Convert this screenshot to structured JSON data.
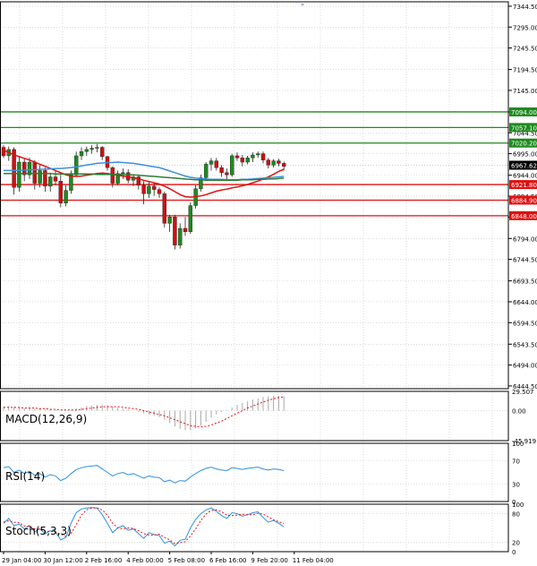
{
  "chart_data": {
    "type": "candlestick",
    "price_axis": {
      "ticks": [
        7344.5,
        7295.0,
        7245.5,
        7194.5,
        7145.0,
        7094.0,
        7044.5,
        6995.0,
        6944.0,
        6894.5,
        6844.5,
        6794.0,
        6744.5,
        6693.5,
        6644.0,
        6594.5,
        6543.5,
        6494.0,
        6444.5
      ],
      "tick_labels": [
        "7344.50",
        "7295.00",
        "7245.50",
        "7194.50",
        "7145.00",
        "7094.00",
        "7044.50",
        "6995.00",
        "6944.00",
        "6894.50",
        "6844.50",
        "6794.00",
        "6744.50",
        "6693.50",
        "6644.00",
        "6594.50",
        "6543.50",
        "6494.00",
        "6444.50"
      ],
      "range": [
        6438,
        7355
      ],
      "current_price": 6967.62,
      "current_price_label": "6967.62"
    },
    "levels": [
      {
        "value": 7094.0,
        "label": "7094.00",
        "kind": "resistance",
        "color": "#1f8a1f"
      },
      {
        "value": 7057.1,
        "label": "7057.10",
        "kind": "resistance",
        "color": "#1f8a1f"
      },
      {
        "value": 7020.2,
        "label": "7020.20",
        "kind": "resistance",
        "color": "#1f8a1f"
      },
      {
        "value": 6921.8,
        "label": "6921.80",
        "kind": "support",
        "color": "#e01010"
      },
      {
        "value": 6884.9,
        "label": "6884.90",
        "kind": "support",
        "color": "#e01010"
      },
      {
        "value": 6848.0,
        "label": "6848.00",
        "kind": "support",
        "color": "#e01010"
      }
    ],
    "time_axis": {
      "labels": [
        "29 Jan 04:00",
        "30 Jan 12:00",
        "2 Feb 16:00",
        "4 Feb 00:00",
        "5 Feb 08:00",
        "6 Feb 16:00",
        "9 Feb 20:00",
        "11 Feb 04:00"
      ],
      "label_index": [
        0,
        8,
        16,
        24,
        32,
        40,
        48,
        56
      ]
    },
    "candles": [
      [
        7010,
        7015,
        6985,
        6990
      ],
      [
        6990,
        7012,
        6978,
        7005
      ],
      [
        7005,
        7010,
        6898,
        6915
      ],
      [
        6915,
        6990,
        6905,
        6975
      ],
      [
        6975,
        6985,
        6930,
        6945
      ],
      [
        6945,
        6985,
        6935,
        6975
      ],
      [
        6975,
        6980,
        6910,
        6925
      ],
      [
        6925,
        6968,
        6915,
        6955
      ],
      [
        6955,
        6962,
        6905,
        6918
      ],
      [
        6918,
        6950,
        6905,
        6940
      ],
      [
        6940,
        6955,
        6920,
        6930
      ],
      [
        6930,
        6945,
        6868,
        6878
      ],
      [
        6878,
        6920,
        6870,
        6908
      ],
      [
        6908,
        6955,
        6900,
        6945
      ],
      [
        6945,
        7000,
        6940,
        6990
      ],
      [
        6990,
        7010,
        6980,
        7000
      ],
      [
        7000,
        7012,
        6990,
        7005
      ],
      [
        7005,
        7015,
        6995,
        7008
      ],
      [
        7008,
        7018,
        6998,
        7010
      ],
      [
        7010,
        7013,
        6980,
        6988
      ],
      [
        6988,
        6990,
        6955,
        6962
      ],
      [
        6962,
        6965,
        6915,
        6925
      ],
      [
        6925,
        6955,
        6920,
        6948
      ],
      [
        6948,
        6960,
        6935,
        6950
      ],
      [
        6950,
        6958,
        6925,
        6932
      ],
      [
        6932,
        6945,
        6918,
        6940
      ],
      [
        6940,
        6945,
        6910,
        6920
      ],
      [
        6920,
        6930,
        6875,
        6900
      ],
      [
        6900,
        6928,
        6890,
        6918
      ],
      [
        6918,
        6925,
        6895,
        6910
      ],
      [
        6910,
        6915,
        6890,
        6900
      ],
      [
        6900,
        6905,
        6820,
        6830
      ],
      [
        6830,
        6850,
        6810,
        6845
      ],
      [
        6845,
        6850,
        6768,
        6778
      ],
      [
        6778,
        6830,
        6770,
        6818
      ],
      [
        6818,
        6845,
        6800,
        6810
      ],
      [
        6810,
        6880,
        6805,
        6872
      ],
      [
        6872,
        6920,
        6865,
        6912
      ],
      [
        6912,
        6945,
        6905,
        6938
      ],
      [
        6938,
        6975,
        6930,
        6970
      ],
      [
        6970,
        6985,
        6955,
        6978
      ],
      [
        6978,
        6985,
        6955,
        6962
      ],
      [
        6962,
        6968,
        6940,
        6950
      ],
      [
        6950,
        6960,
        6930,
        6945
      ],
      [
        6945,
        6995,
        6940,
        6990
      ],
      [
        6990,
        6998,
        6978,
        6985
      ],
      [
        6985,
        6992,
        6965,
        6975
      ],
      [
        6975,
        6990,
        6970,
        6985
      ],
      [
        6985,
        6998,
        6975,
        6992
      ],
      [
        6992,
        7000,
        6985,
        6995
      ],
      [
        6995,
        7000,
        6972,
        6980
      ],
      [
        6980,
        6985,
        6960,
        6968
      ],
      [
        6968,
        6982,
        6962,
        6978
      ],
      [
        6978,
        6983,
        6965,
        6972
      ],
      [
        6972,
        6976,
        6955,
        6965
      ]
    ],
    "candle_order": [
      "open",
      "high",
      "low",
      "close"
    ],
    "candle_colors": {
      "up": "#1f8a1f",
      "down": "#d01010"
    },
    "moving_averages": [
      {
        "color": "#e01010",
        "values": [
          7003,
          6998,
          6992,
          6988,
          6984,
          6980,
          6975,
          6970,
          6965,
          6960,
          6955,
          6950,
          6945,
          6942,
          6941,
          6942,
          6944,
          6946,
          6948,
          6949,
          6948,
          6946,
          6944,
          6942,
          6940,
          6938,
          6935,
          6932,
          6929,
          6926,
          6923,
          6918,
          6912,
          6905,
          6898,
          6893,
          6892,
          6893,
          6895,
          6898,
          6902,
          6906,
          6909,
          6911,
          6914,
          6916,
          6919,
          6922,
          6926,
          6930,
          6935,
          6940,
          6946,
          6953,
          6958
        ]
      },
      {
        "color": "#3a8fe0",
        "values": [
          6955,
          6955,
          6955,
          6955,
          6956,
          6957,
          6957,
          6958,
          6958,
          6959,
          6960,
          6960,
          6961,
          6962,
          6964,
          6966,
          6968,
          6970,
          6972,
          6973,
          6974,
          6974,
          6975,
          6974,
          6973,
          6972,
          6970,
          6968,
          6966,
          6964,
          6962,
          6958,
          6954,
          6950,
          6946,
          6942,
          6939,
          6937,
          6936,
          6935,
          6934,
          6934,
          6934,
          6933,
          6933,
          6933,
          6934,
          6934,
          6935,
          6936,
          6937,
          6938,
          6939,
          6940,
          6941
        ]
      },
      {
        "color": "#2e7d32",
        "values": [
          6948,
          6948,
          6948,
          6948,
          6948,
          6948,
          6948,
          6948,
          6948,
          6948,
          6947,
          6947,
          6947,
          6947,
          6947,
          6947,
          6947,
          6947,
          6946,
          6946,
          6946,
          6946,
          6946,
          6946,
          6945,
          6945,
          6944,
          6943,
          6942,
          6941,
          6940,
          6939,
          6938,
          6937,
          6936,
          6935,
          6934,
          6933,
          6933,
          6932,
          6932,
          6932,
          6932,
          6932,
          6932,
          6932,
          6933,
          6933,
          6933,
          6934,
          6934,
          6935,
          6935,
          6936,
          6937
        ]
      }
    ],
    "macd": {
      "label": "MACD(12,26,9)",
      "ticks": [
        29.507,
        0.0,
        -45.919
      ],
      "tick_labels": [
        "29.507",
        "0.00",
        "-45.919"
      ],
      "range": [
        -45.919,
        29.507
      ],
      "histogram": [
        6,
        7,
        6,
        5,
        4,
        4,
        3,
        3,
        2,
        2,
        1,
        0,
        0,
        1,
        3,
        5,
        7,
        8,
        9,
        9,
        8,
        6,
        4,
        3,
        2,
        0,
        -2,
        -4,
        -6,
        -8,
        -10,
        -14,
        -19,
        -24,
        -28,
        -30,
        -30,
        -27,
        -23,
        -17,
        -11,
        -6,
        -2,
        1,
        5,
        9,
        12,
        14,
        17,
        19,
        21,
        22,
        23,
        23,
        22
      ],
      "signal": [
        5,
        5,
        5,
        5,
        4,
        4,
        4,
        3,
        3,
        2,
        2,
        1,
        1,
        1,
        1,
        2,
        3,
        4,
        5,
        6,
        6,
        6,
        6,
        5,
        4,
        3,
        2,
        0,
        -2,
        -4,
        -6,
        -8,
        -11,
        -14,
        -17,
        -20,
        -23,
        -24,
        -25,
        -24,
        -22,
        -19,
        -16,
        -12,
        -8,
        -4,
        0,
        4,
        7,
        10,
        13,
        16,
        18,
        20,
        21
      ]
    },
    "rsi": {
      "label": "RSI(14)",
      "ticks": [
        100,
        70,
        30,
        0
      ],
      "tick_labels": [
        "100",
        "70",
        "30",
        "0"
      ],
      "range": [
        0,
        100
      ],
      "values": [
        58,
        60,
        50,
        54,
        48,
        52,
        45,
        48,
        42,
        46,
        44,
        36,
        40,
        48,
        55,
        58,
        60,
        61,
        62,
        56,
        50,
        44,
        48,
        50,
        46,
        48,
        44,
        40,
        44,
        42,
        41,
        34,
        37,
        32,
        36,
        35,
        42,
        48,
        53,
        57,
        59,
        56,
        54,
        53,
        58,
        57,
        55,
        57,
        58,
        59,
        56,
        54,
        56,
        55,
        53
      ]
    },
    "stoch": {
      "label": "Stoch(5,3,3)",
      "ticks": [
        100,
        80,
        20,
        0
      ],
      "tick_labels": [
        "100",
        "80",
        "20",
        "0"
      ],
      "range": [
        0,
        100
      ],
      "main": [
        60,
        70,
        55,
        58,
        48,
        55,
        42,
        48,
        38,
        44,
        42,
        25,
        30,
        60,
        82,
        90,
        92,
        93,
        92,
        78,
        60,
        40,
        50,
        55,
        45,
        48,
        38,
        28,
        40,
        36,
        34,
        18,
        22,
        12,
        24,
        26,
        50,
        68,
        80,
        88,
        92,
        85,
        76,
        70,
        82,
        80,
        75,
        78,
        82,
        84,
        72,
        62,
        66,
        60,
        52
      ],
      "signal": [
        62,
        65,
        62,
        61,
        54,
        54,
        48,
        48,
        43,
        43,
        41,
        37,
        32,
        38,
        57,
        77,
        88,
        92,
        92,
        88,
        77,
        60,
        50,
        48,
        50,
        49,
        44,
        38,
        35,
        35,
        37,
        30,
        25,
        17,
        19,
        21,
        33,
        48,
        66,
        79,
        87,
        88,
        84,
        77,
        76,
        77,
        79,
        78,
        78,
        81,
        79,
        73,
        67,
        63,
        59
      ]
    }
  }
}
